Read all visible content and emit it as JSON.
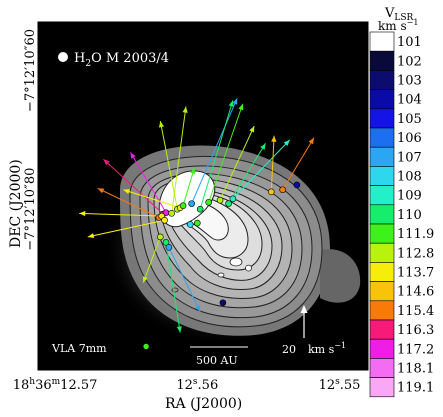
{
  "chart_data": {
    "type": "scatter",
    "title": "",
    "xlabel": "RA (J2000)",
    "ylabel": "DEC (J2000)",
    "x_ticks": [
      {
        "value": 12.57,
        "label_prefix": "18",
        "label_h": "h",
        "label_mid": "36",
        "label_m": "m",
        "label_main": "12.57",
        "label_sec": "",
        "label_tail": ""
      },
      {
        "value": 12.56,
        "label_prefix": "",
        "label_h": "",
        "label_mid": "",
        "label_m": "",
        "label_main": "12",
        "label_sec": "s",
        "label_tail": ".56"
      },
      {
        "value": 12.55,
        "label_prefix": "",
        "label_h": "",
        "label_mid": "",
        "label_m": "",
        "label_main": "12",
        "label_sec": "s",
        "label_tail": ".55"
      }
    ],
    "y_ticks": [
      {
        "value": 10.6,
        "label": "−7°12′10″60"
      },
      {
        "value": 10.8,
        "label": "−7°12′10″80"
      }
    ],
    "legend_marker_label": "H",
    "legend_marker_sub": "2",
    "legend_marker_tail": "O M 2003/4",
    "instrument_label": "VLA 7mm",
    "scalebar_label": "500  AU",
    "velocity_scale_value": "20",
    "velocity_scale_unit": "km s",
    "velocity_scale_exp": "−1",
    "colorbar_title_main": "V",
    "colorbar_title_sub": "LSR",
    "colorbar_unit": "km s",
    "colorbar_unit_exp": "−1",
    "colorbar": [
      {
        "value": "101",
        "color": "#ffffff"
      },
      {
        "value": "102",
        "color": "#0a0a3a"
      },
      {
        "value": "103",
        "color": "#0c0c6e"
      },
      {
        "value": "104",
        "color": "#0a0aa8"
      },
      {
        "value": "105",
        "color": "#1414e6"
      },
      {
        "value": "106",
        "color": "#1e6ef0"
      },
      {
        "value": "107",
        "color": "#2aa6f2"
      },
      {
        "value": "108",
        "color": "#2ed8ec"
      },
      {
        "value": "109",
        "color": "#22f0c8"
      },
      {
        "value": "110",
        "color": "#14ee6a"
      },
      {
        "value": "111.9",
        "color": "#3ef01c"
      },
      {
        "value": "112.8",
        "color": "#b8f20e"
      },
      {
        "value": "113.7",
        "color": "#f6ee0a"
      },
      {
        "value": "114.6",
        "color": "#f8c40a"
      },
      {
        "value": "115.4",
        "color": "#f87a08"
      },
      {
        "value": "116.3",
        "color": "#f81a78"
      },
      {
        "value": "117.2",
        "color": "#f01ce8"
      },
      {
        "value": "118.1",
        "color": "#f46cf2"
      },
      {
        "value": "119.1",
        "color": "#f8a8f6"
      }
    ],
    "masers": [
      {
        "x": 12.5627,
        "y": 10.812,
        "dx": 12.567,
        "dy": 10.77,
        "vlsr": 115.4
      },
      {
        "x": 12.5624,
        "y": 10.807,
        "dx": 12.5666,
        "dy": 10.728,
        "vlsr": 116.3
      },
      {
        "x": 12.5622,
        "y": 10.805,
        "dx": 12.5647,
        "dy": 10.718,
        "vlsr": 117.2
      },
      {
        "x": 12.5625,
        "y": 10.81,
        "dx": 12.5683,
        "dy": 10.806,
        "vlsr": 113.7
      },
      {
        "x": 12.5623,
        "y": 10.816,
        "dx": 12.5677,
        "dy": 10.84,
        "vlsr": 113.7
      },
      {
        "x": 12.5618,
        "y": 10.806,
        "dx": 12.5608,
        "dy": 10.652,
        "vlsr": 112.8
      },
      {
        "x": 12.5614,
        "y": 10.8,
        "dx": 12.5626,
        "dy": 10.673,
        "vlsr": 112.8
      },
      {
        "x": 12.5612,
        "y": 10.798,
        "dx": 12.5652,
        "dy": 10.772,
        "vlsr": 113.7
      },
      {
        "x": 12.561,
        "y": 10.795,
        "dx": 12.5602,
        "dy": 10.74,
        "vlsr": 111.9
      },
      {
        "x": 12.5604,
        "y": 10.792,
        "dx": 12.5572,
        "dy": 10.64,
        "vlsr": 107
      },
      {
        "x": 12.5598,
        "y": 10.8,
        "dx": 12.5575,
        "dy": 10.643,
        "vlsr": 110
      },
      {
        "x": 12.5592,
        "y": 10.79,
        "dx": 12.5568,
        "dy": 10.648,
        "vlsr": 111.9
      },
      {
        "x": 12.5584,
        "y": 10.787,
        "dx": 12.556,
        "dy": 10.68,
        "vlsr": 112.8
      },
      {
        "x": 12.5578,
        "y": 10.792,
        "dx": 12.5552,
        "dy": 10.705,
        "vlsr": 110
      },
      {
        "x": 12.5575,
        "y": 10.785,
        "dx": 12.5535,
        "dy": 10.7,
        "vlsr": 109
      },
      {
        "x": 12.5548,
        "y": 10.775,
        "dx": 12.5546,
        "dy": 10.694,
        "vlsr": 114.6
      },
      {
        "x": 12.554,
        "y": 10.772,
        "dx": 12.5518,
        "dy": 10.697,
        "vlsr": 115.4
      },
      {
        "x": 12.5605,
        "y": 10.822,
        "dx": 12.5608,
        "dy": 10.822,
        "vlsr": 108
      },
      {
        "x": 12.56,
        "y": 10.82,
        "dx": 12.56,
        "dy": 10.82,
        "vlsr": 111.9
      },
      {
        "x": 12.5626,
        "y": 10.84,
        "dx": 12.5638,
        "dy": 10.906,
        "vlsr": 112.8
      },
      {
        "x": 12.5622,
        "y": 10.848,
        "dx": 12.5612,
        "dy": 10.978,
        "vlsr": 110
      },
      {
        "x": 12.562,
        "y": 10.855,
        "dx": 12.5598,
        "dy": 10.948,
        "vlsr": 107
      },
      {
        "x": 12.5582,
        "y": 10.935,
        "dx": 12.5582,
        "dy": 10.935,
        "vlsr": 103
      },
      {
        "x": 12.5636,
        "y": 10.998,
        "dx": 12.5636,
        "dy": 10.998,
        "vlsr": 111.9
      },
      {
        "x": 12.5564,
        "y": 10.885,
        "dx": 12.5564,
        "dy": 10.885,
        "vlsr": 101
      },
      {
        "x": 12.553,
        "y": 10.765,
        "dx": 12.553,
        "dy": 10.765,
        "vlsr": 104
      }
    ]
  }
}
